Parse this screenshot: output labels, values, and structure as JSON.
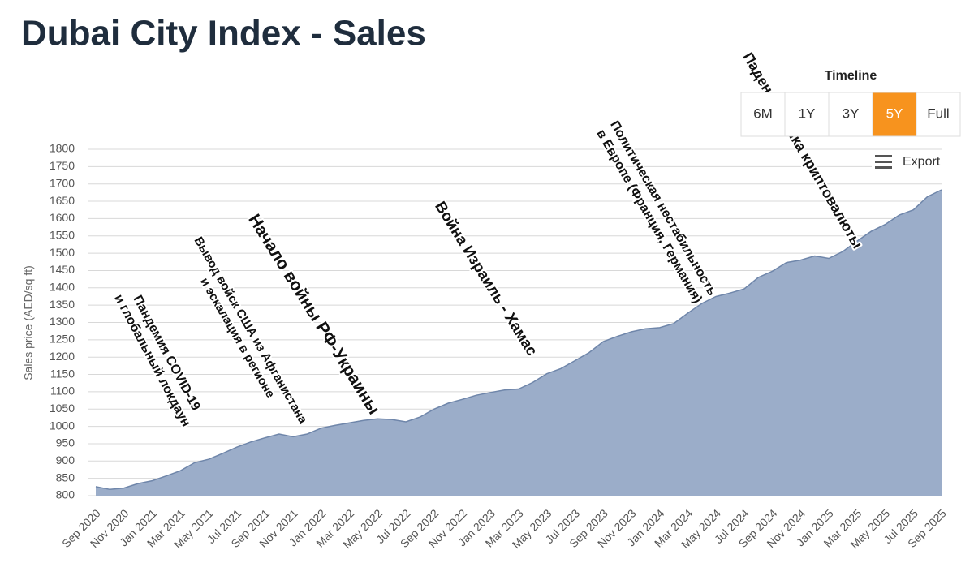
{
  "chart_data": {
    "type": "area",
    "title": "Dubai City Index - Sales",
    "y_label": "Sales price (AED/sq ft)",
    "categories": [
      "Sep 2020",
      null,
      "Nov 2020",
      null,
      "Jan 2021",
      null,
      "Mar 2021",
      null,
      "May 2021",
      null,
      "Jul 2021",
      null,
      "Sep 2021",
      null,
      "Nov 2021",
      null,
      "Jan 2022",
      null,
      "Mar 2022",
      null,
      "May 2022",
      null,
      "Jul 2022",
      null,
      "Sep 2022",
      null,
      "Nov 2022",
      null,
      "Jan 2023",
      null,
      "Mar 2023",
      null,
      "May 2023",
      null,
      "Jul 2023",
      null,
      "Sep 2023",
      null,
      "Nov 2023",
      null,
      "Jan 2024",
      null,
      "Mar 2024",
      null,
      "May 2024",
      null,
      "Jul 2024",
      null,
      "Sep 2024",
      null,
      "Nov 2024",
      null,
      "Jan 2025",
      null,
      "Mar 2025",
      null,
      "May 2025",
      null,
      "Jul 2025",
      null,
      "Sep 2025"
    ],
    "values": [
      826,
      818,
      822,
      835,
      843,
      857,
      872,
      895,
      905,
      922,
      940,
      955,
      967,
      978,
      970,
      978,
      995,
      1003,
      1010,
      1017,
      1022,
      1020,
      1013,
      1027,
      1050,
      1067,
      1078,
      1090,
      1098,
      1105,
      1108,
      1127,
      1152,
      1167,
      1190,
      1213,
      1245,
      1260,
      1273,
      1282,
      1285,
      1297,
      1327,
      1355,
      1375,
      1385,
      1397,
      1430,
      1448,
      1473,
      1480,
      1492,
      1485,
      1505,
      1535,
      1563,
      1583,
      1610,
      1625,
      1663,
      1683
    ],
    "color": "#9badc9",
    "line_color": "#6f86aa",
    "ylim": [
      800,
      1800
    ],
    "yticks": [
      800,
      850,
      900,
      950,
      1000,
      1050,
      1100,
      1150,
      1200,
      1250,
      1300,
      1350,
      1400,
      1450,
      1500,
      1550,
      1600,
      1650,
      1700,
      1750,
      1800
    ],
    "grid": true,
    "annotations": [
      {
        "lines": [
          "Пандемия COVID-19",
          "и глобальный локдаун"
        ]
      },
      {
        "lines": [
          "Вывод войск США из Афганистана",
          "и эскалация в регионе"
        ]
      },
      {
        "lines": [
          "Начало войны РФ-Украины"
        ]
      },
      {
        "lines": [
          "Война Израиль - Хамас"
        ]
      },
      {
        "lines": [
          "Политическая нестабильность",
          "в Европе (Франция, Германия)"
        ]
      },
      {
        "lines": [
          "Падение рынка криптовалюты"
        ]
      }
    ]
  },
  "timeline": {
    "title": "Timeline",
    "buttons": [
      "6M",
      "1Y",
      "3Y",
      "5Y",
      "Full"
    ],
    "active": "5Y"
  },
  "export": {
    "label": "Export"
  }
}
